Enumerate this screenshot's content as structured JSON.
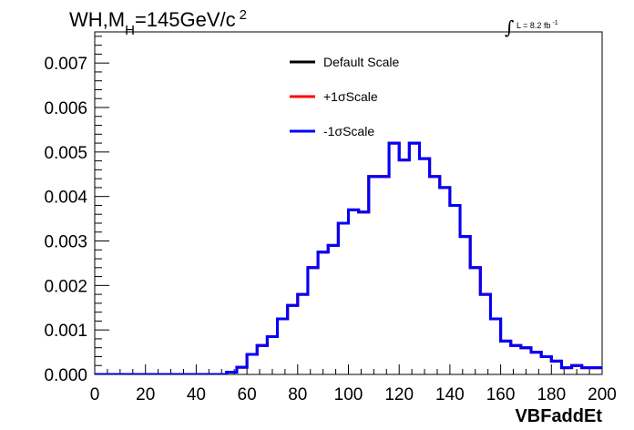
{
  "chart_data": {
    "type": "line",
    "subtype": "step-histogram",
    "title_parts": {
      "prefix": "WH,M",
      "subscript": "H",
      "suffix": "=145GeV/c",
      "superscript": "2"
    },
    "lumi_label": {
      "symbol": "∫",
      "text": "L = 8.2 fb",
      "superscript": "-1"
    },
    "xlabel": "VBFaddEt",
    "ylabel": "",
    "xlim": [
      0,
      200
    ],
    "ylim": [
      0,
      0.0077
    ],
    "bin_width": 4,
    "x_ticks": [
      "0",
      "20",
      "40",
      "60",
      "80",
      "100",
      "120",
      "140",
      "160",
      "180",
      "200"
    ],
    "x_tick_values": [
      0,
      20,
      40,
      60,
      80,
      100,
      120,
      140,
      160,
      180,
      200
    ],
    "y_ticks": [
      "0.000",
      "0.001",
      "0.002",
      "0.003",
      "0.004",
      "0.005",
      "0.006",
      "0.007"
    ],
    "y_tick_values": [
      0,
      0.001,
      0.002,
      0.003,
      0.004,
      0.005,
      0.006,
      0.007
    ],
    "legend": {
      "placement": "top-center"
    },
    "series": [
      {
        "name": "Default Scale",
        "color": "#000000",
        "values": [
          0,
          0,
          0,
          0,
          0,
          0,
          0,
          0,
          0,
          0,
          0,
          0,
          0,
          5e-05,
          0.00016,
          0.00045,
          0.00065,
          0.00085,
          0.00125,
          0.00155,
          0.0018,
          0.0024,
          0.00275,
          0.0029,
          0.0034,
          0.0037,
          0.00365,
          0.00445,
          0.00445,
          0.0052,
          0.00482,
          0.0052,
          0.00485,
          0.00445,
          0.0042,
          0.0038,
          0.0031,
          0.0024,
          0.0018,
          0.00125,
          0.00075,
          0.00065,
          0.0006,
          0.0005,
          0.0004,
          0.0003,
          0.00015,
          0.0002,
          0.00015,
          0.00015
        ]
      },
      {
        "name": "+1σScale",
        "color": "#ff0000",
        "values": [
          0,
          0,
          0,
          0,
          0,
          0,
          0,
          0,
          0,
          0,
          0,
          0,
          0,
          5e-05,
          0.00016,
          0.00045,
          0.00065,
          0.00085,
          0.00125,
          0.00155,
          0.0018,
          0.0024,
          0.00275,
          0.0029,
          0.0034,
          0.0037,
          0.00365,
          0.00445,
          0.00445,
          0.0052,
          0.00482,
          0.0052,
          0.00485,
          0.00445,
          0.0042,
          0.0038,
          0.0031,
          0.0024,
          0.0018,
          0.00125,
          0.00075,
          0.00065,
          0.0006,
          0.0005,
          0.0004,
          0.0003,
          0.00015,
          0.0002,
          0.00015,
          0.00015
        ]
      },
      {
        "name": "-1σScale",
        "color": "#0000ff",
        "values": [
          0,
          0,
          0,
          0,
          0,
          0,
          0,
          0,
          0,
          0,
          0,
          0,
          0,
          5e-05,
          0.00016,
          0.00045,
          0.00065,
          0.00085,
          0.00125,
          0.00155,
          0.0018,
          0.0024,
          0.00275,
          0.0029,
          0.0034,
          0.0037,
          0.00365,
          0.00445,
          0.00445,
          0.0052,
          0.00482,
          0.0052,
          0.00485,
          0.00445,
          0.0042,
          0.0038,
          0.0031,
          0.0024,
          0.0018,
          0.00125,
          0.00075,
          0.00065,
          0.0006,
          0.0005,
          0.0004,
          0.0003,
          0.00015,
          0.0002,
          0.00015,
          0.00015
        ]
      }
    ]
  }
}
